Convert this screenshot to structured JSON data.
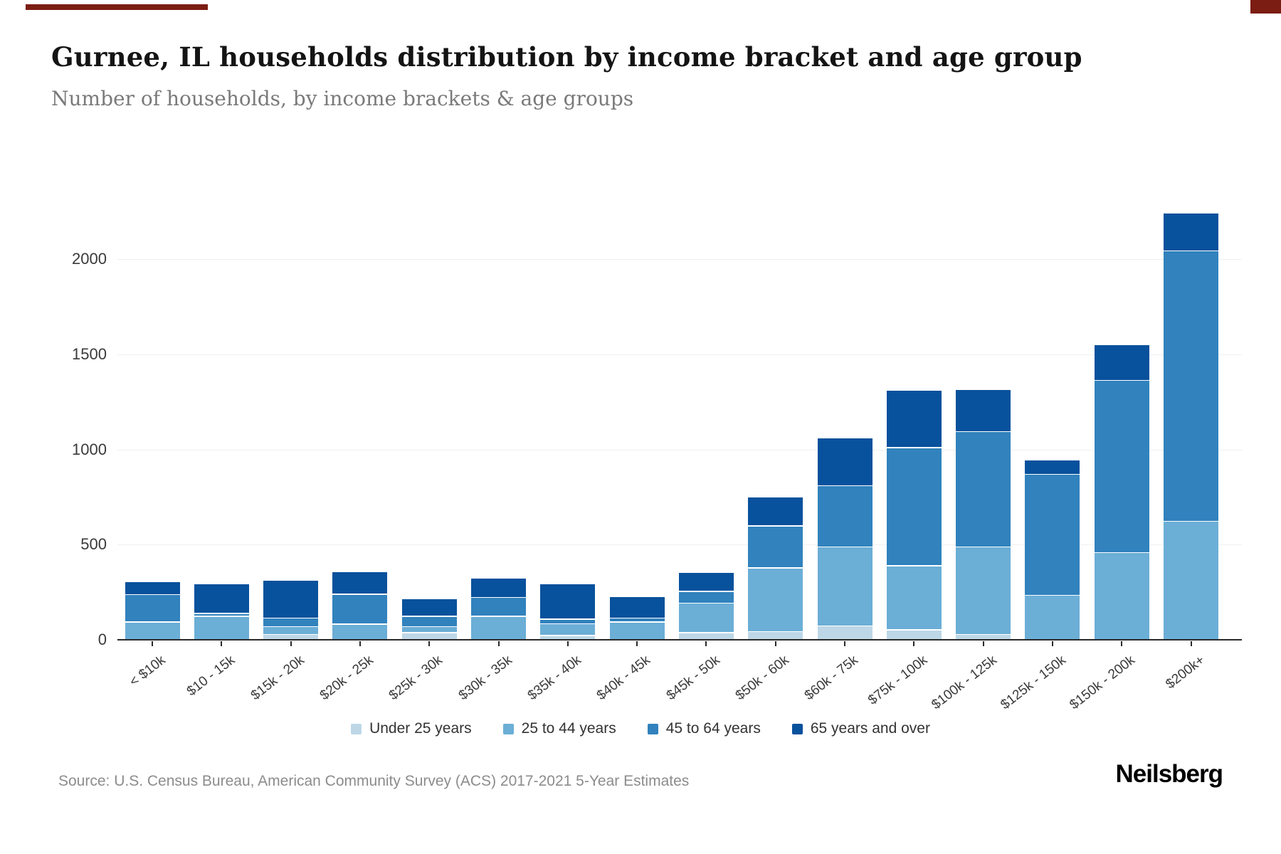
{
  "header": {
    "title": "Gurnee, IL households distribution by income bracket and age group",
    "subtitle": "Number of households, by income brackets & age groups"
  },
  "accents": {
    "top_mark_color": "#7b1d13"
  },
  "chart_data": {
    "type": "bar",
    "stacked": true,
    "orientation": "vertical",
    "title": "Gurnee, IL households distribution by income bracket and age group",
    "xlabel": "",
    "ylabel": "",
    "ylim": [
      0,
      2250
    ],
    "yticks": [
      0,
      500,
      1000,
      1500,
      2000
    ],
    "grid": true,
    "legend_position": "bottom",
    "categories": [
      "< $10k",
      "$10 - 15k",
      "$15k - 20k",
      "$20k - 25k",
      "$25k - 30k",
      "$30k - 35k",
      "$35k - 40k",
      "$40k - 45k",
      "$45k - 50k",
      "$50k - 60k",
      "$60k - 75k",
      "$75k - 100k",
      "$100k - 125k",
      "$125k - 150k",
      "$150k - 200k",
      "$200k+"
    ],
    "series": [
      {
        "name": "Under 25 years",
        "color": "#bdd7e7",
        "values": [
          0,
          0,
          25,
          0,
          35,
          0,
          20,
          0,
          35,
          40,
          70,
          50,
          25,
          0,
          0,
          0
        ]
      },
      {
        "name": "25 to 44 years",
        "color": "#6baed6",
        "values": [
          90,
          120,
          35,
          80,
          25,
          120,
          55,
          90,
          150,
          330,
          410,
          330,
          455,
          230,
          455,
          620
        ]
      },
      {
        "name": "45 to 64 years",
        "color": "#3182bd",
        "values": [
          140,
          10,
          40,
          150,
          50,
          95,
          20,
          15,
          55,
          215,
          315,
          615,
          600,
          630,
          900,
          1415
        ]
      },
      {
        "name": "65 years and over",
        "color": "#08519c",
        "values": [
          60,
          150,
          195,
          115,
          85,
          95,
          180,
          110,
          95,
          145,
          245,
          295,
          215,
          70,
          180,
          195
        ]
      }
    ],
    "totals": [
      290,
      280,
      295,
      345,
      195,
      310,
      275,
      215,
      335,
      730,
      1040,
      1290,
      1295,
      930,
      1535,
      2230
    ]
  },
  "footer": {
    "source": "Source: U.S. Census Bureau, American Community Survey (ACS) 2017-2021 5-Year Estimates",
    "logo": "Neilsberg"
  }
}
